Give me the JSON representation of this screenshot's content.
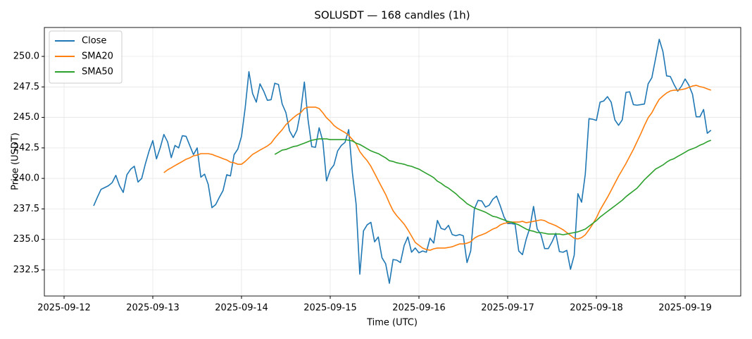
{
  "chart_data": {
    "type": "line",
    "title": "SOLUSDT — 168 candles (1h)",
    "x_label": "Time (UTC)",
    "y_label": "Price (USDT)",
    "x": [
      "2025-09-12T08:00",
      "2025-09-12T09:00",
      "2025-09-12T10:00",
      "2025-09-12T11:00",
      "2025-09-12T12:00",
      "2025-09-12T13:00",
      "2025-09-12T14:00",
      "2025-09-12T15:00",
      "2025-09-12T16:00",
      "2025-09-12T17:00",
      "2025-09-12T18:00",
      "2025-09-12T19:00",
      "2025-09-12T20:00",
      "2025-09-12T21:00",
      "2025-09-12T22:00",
      "2025-09-12T23:00",
      "2025-09-13T00:00",
      "2025-09-13T01:00",
      "2025-09-13T02:00",
      "2025-09-13T03:00",
      "2025-09-13T04:00",
      "2025-09-13T05:00",
      "2025-09-13T06:00",
      "2025-09-13T07:00",
      "2025-09-13T08:00",
      "2025-09-13T09:00",
      "2025-09-13T10:00",
      "2025-09-13T11:00",
      "2025-09-13T12:00",
      "2025-09-13T13:00",
      "2025-09-13T14:00",
      "2025-09-13T15:00",
      "2025-09-13T16:00",
      "2025-09-13T17:00",
      "2025-09-13T18:00",
      "2025-09-13T19:00",
      "2025-09-13T20:00",
      "2025-09-13T21:00",
      "2025-09-13T22:00",
      "2025-09-13T23:00",
      "2025-09-14T00:00",
      "2025-09-14T01:00",
      "2025-09-14T02:00",
      "2025-09-14T03:00",
      "2025-09-14T04:00",
      "2025-09-14T05:00",
      "2025-09-14T06:00",
      "2025-09-14T07:00",
      "2025-09-14T08:00",
      "2025-09-14T09:00",
      "2025-09-14T10:00",
      "2025-09-14T11:00",
      "2025-09-14T12:00",
      "2025-09-14T13:00",
      "2025-09-14T14:00",
      "2025-09-14T15:00",
      "2025-09-14T16:00",
      "2025-09-14T17:00",
      "2025-09-14T18:00",
      "2025-09-14T19:00",
      "2025-09-14T20:00",
      "2025-09-14T21:00",
      "2025-09-14T22:00",
      "2025-09-14T23:00",
      "2025-09-15T00:00",
      "2025-09-15T01:00",
      "2025-09-15T02:00",
      "2025-09-15T03:00",
      "2025-09-15T04:00",
      "2025-09-15T05:00",
      "2025-09-15T06:00",
      "2025-09-15T07:00",
      "2025-09-15T08:00",
      "2025-09-15T09:00",
      "2025-09-15T10:00",
      "2025-09-15T11:00",
      "2025-09-15T12:00",
      "2025-09-15T13:00",
      "2025-09-15T14:00",
      "2025-09-15T15:00",
      "2025-09-15T16:00",
      "2025-09-15T17:00",
      "2025-09-15T18:00",
      "2025-09-15T19:00",
      "2025-09-15T20:00",
      "2025-09-15T21:00",
      "2025-09-15T22:00",
      "2025-09-15T23:00",
      "2025-09-16T00:00",
      "2025-09-16T01:00",
      "2025-09-16T02:00",
      "2025-09-16T03:00",
      "2025-09-16T04:00",
      "2025-09-16T05:00",
      "2025-09-16T06:00",
      "2025-09-16T07:00",
      "2025-09-16T08:00",
      "2025-09-16T09:00",
      "2025-09-16T10:00",
      "2025-09-16T11:00",
      "2025-09-16T12:00",
      "2025-09-16T13:00",
      "2025-09-16T14:00",
      "2025-09-16T15:00",
      "2025-09-16T16:00",
      "2025-09-16T17:00",
      "2025-09-16T18:00",
      "2025-09-16T19:00",
      "2025-09-16T20:00",
      "2025-09-16T21:00",
      "2025-09-16T22:00",
      "2025-09-16T23:00",
      "2025-09-17T00:00",
      "2025-09-17T01:00",
      "2025-09-17T02:00",
      "2025-09-17T03:00",
      "2025-09-17T04:00",
      "2025-09-17T05:00",
      "2025-09-17T06:00",
      "2025-09-17T07:00",
      "2025-09-17T08:00",
      "2025-09-17T09:00",
      "2025-09-17T10:00",
      "2025-09-17T11:00",
      "2025-09-17T12:00",
      "2025-09-17T13:00",
      "2025-09-17T14:00",
      "2025-09-17T15:00",
      "2025-09-17T16:00",
      "2025-09-17T17:00",
      "2025-09-17T18:00",
      "2025-09-17T19:00",
      "2025-09-17T20:00",
      "2025-09-17T21:00",
      "2025-09-17T22:00",
      "2025-09-17T23:00",
      "2025-09-18T00:00",
      "2025-09-18T01:00",
      "2025-09-18T02:00",
      "2025-09-18T03:00",
      "2025-09-18T04:00",
      "2025-09-18T05:00",
      "2025-09-18T06:00",
      "2025-09-18T07:00",
      "2025-09-18T08:00",
      "2025-09-18T09:00",
      "2025-09-18T10:00",
      "2025-09-18T11:00",
      "2025-09-18T12:00",
      "2025-09-18T13:00",
      "2025-09-18T14:00",
      "2025-09-18T15:00",
      "2025-09-18T16:00",
      "2025-09-18T17:00",
      "2025-09-18T18:00",
      "2025-09-18T19:00",
      "2025-09-18T20:00",
      "2025-09-18T21:00",
      "2025-09-18T22:00",
      "2025-09-18T23:00",
      "2025-09-19T00:00",
      "2025-09-19T01:00",
      "2025-09-19T02:00",
      "2025-09-19T03:00",
      "2025-09-19T04:00",
      "2025-09-19T05:00",
      "2025-09-19T06:00",
      "2025-09-19T07:00"
    ],
    "series": [
      {
        "name": "Close",
        "color": "#1f77b4",
        "values": [
          237.75,
          238.45,
          239.1,
          239.25,
          239.4,
          239.65,
          240.25,
          239.4,
          238.85,
          240.3,
          240.75,
          241.0,
          239.7,
          240.0,
          241.2,
          242.25,
          243.1,
          241.6,
          242.5,
          243.6,
          243.0,
          241.7,
          242.7,
          242.5,
          243.5,
          243.45,
          242.7,
          241.95,
          242.5,
          240.1,
          240.35,
          239.5,
          237.6,
          237.85,
          238.45,
          239.0,
          240.3,
          240.2,
          241.95,
          242.4,
          243.45,
          245.8,
          248.75,
          246.95,
          246.25,
          247.75,
          247.15,
          246.4,
          246.45,
          247.8,
          247.7,
          246.1,
          245.4,
          243.9,
          243.35,
          243.95,
          245.5,
          247.9,
          244.8,
          242.6,
          242.55,
          244.15,
          243.05,
          239.8,
          240.7,
          241.1,
          242.25,
          242.7,
          242.95,
          244.0,
          240.45,
          237.9,
          232.15,
          235.7,
          236.2,
          236.4,
          234.8,
          235.2,
          233.5,
          233.0,
          231.4,
          233.35,
          233.3,
          233.1,
          234.5,
          235.2,
          233.95,
          234.3,
          233.9,
          234.05,
          233.95,
          235.1,
          234.7,
          236.55,
          235.9,
          235.8,
          236.15,
          235.4,
          235.3,
          235.4,
          235.3,
          233.1,
          234.05,
          237.5,
          238.2,
          238.15,
          237.65,
          237.8,
          238.3,
          238.55,
          237.75,
          236.85,
          236.3,
          236.3,
          236.25,
          234.05,
          233.75,
          235.0,
          235.95,
          237.7,
          235.85,
          235.4,
          234.25,
          234.25,
          234.8,
          235.5,
          234.0,
          233.95,
          234.1,
          232.55,
          233.7,
          238.75,
          238.05,
          240.35,
          244.9,
          244.85,
          244.75,
          246.25,
          246.35,
          246.7,
          246.25,
          244.8,
          244.35,
          244.8,
          247.05,
          247.1,
          246.05,
          246.0,
          246.05,
          246.1,
          247.75,
          248.25,
          249.8,
          251.4,
          250.4,
          248.4,
          248.35,
          247.7,
          247.15,
          247.55,
          248.15,
          247.65,
          246.9,
          245.05,
          245.05,
          245.65,
          243.7,
          243.95
        ]
      },
      {
        "name": "SMA20",
        "color": "#ff7f0e",
        "values": [
          null,
          null,
          null,
          null,
          null,
          null,
          null,
          null,
          null,
          null,
          null,
          null,
          null,
          null,
          null,
          null,
          null,
          null,
          null,
          240.47,
          240.7,
          240.87,
          241.05,
          241.22,
          241.39,
          241.57,
          241.68,
          241.85,
          241.91,
          242.03,
          242.03,
          242.03,
          241.97,
          241.85,
          241.74,
          241.62,
          241.51,
          241.33,
          241.28,
          241.16,
          241.16,
          241.39,
          241.68,
          241.97,
          242.14,
          242.32,
          242.49,
          242.66,
          242.89,
          243.3,
          243.65,
          243.99,
          244.4,
          244.69,
          244.97,
          245.21,
          245.38,
          245.73,
          245.84,
          245.84,
          245.84,
          245.73,
          245.38,
          244.97,
          244.69,
          244.34,
          244.11,
          243.93,
          243.76,
          243.53,
          243.18,
          242.84,
          242.2,
          241.8,
          241.45,
          240.99,
          240.41,
          239.83,
          239.25,
          238.68,
          237.98,
          237.35,
          236.94,
          236.6,
          236.25,
          235.79,
          235.27,
          234.75,
          234.52,
          234.29,
          234.17,
          234.11,
          234.23,
          234.29,
          234.29,
          234.29,
          234.34,
          234.4,
          234.52,
          234.63,
          234.63,
          234.69,
          234.81,
          235.1,
          235.27,
          235.38,
          235.5,
          235.67,
          235.85,
          235.96,
          236.19,
          236.31,
          236.37,
          236.42,
          236.42,
          236.42,
          236.48,
          236.37,
          236.42,
          236.48,
          236.54,
          236.6,
          236.54,
          236.37,
          236.25,
          236.13,
          235.96,
          235.79,
          235.56,
          235.33,
          235.1,
          235.04,
          235.15,
          235.38,
          235.79,
          236.25,
          236.77,
          237.41,
          237.93,
          238.45,
          239.02,
          239.6,
          240.18,
          240.7,
          241.22,
          241.8,
          242.37,
          243.01,
          243.65,
          244.34,
          244.97,
          245.38,
          245.96,
          246.48,
          246.76,
          247.0,
          247.17,
          247.23,
          247.23,
          247.28,
          247.34,
          247.46,
          247.57,
          247.63,
          247.52,
          247.46,
          247.34,
          247.23
        ]
      },
      {
        "name": "SMA50",
        "color": "#2ca02c",
        "values": [
          null,
          null,
          null,
          null,
          null,
          null,
          null,
          null,
          null,
          null,
          null,
          null,
          null,
          null,
          null,
          null,
          null,
          null,
          null,
          null,
          null,
          null,
          null,
          null,
          null,
          null,
          null,
          null,
          null,
          null,
          null,
          null,
          null,
          null,
          null,
          null,
          null,
          null,
          null,
          null,
          null,
          null,
          null,
          null,
          null,
          null,
          null,
          null,
          null,
          241.97,
          242.14,
          242.32,
          242.37,
          242.49,
          242.61,
          242.66,
          242.78,
          242.89,
          243.01,
          243.13,
          243.18,
          243.24,
          243.24,
          243.24,
          243.18,
          243.18,
          243.18,
          243.18,
          243.18,
          243.13,
          243.07,
          242.89,
          242.78,
          242.61,
          242.43,
          242.26,
          242.14,
          242.03,
          241.85,
          241.68,
          241.45,
          241.39,
          241.28,
          241.22,
          241.16,
          241.05,
          240.99,
          240.87,
          240.76,
          240.58,
          240.41,
          240.24,
          240.06,
          239.77,
          239.6,
          239.37,
          239.2,
          238.97,
          238.74,
          238.45,
          238.21,
          237.93,
          237.75,
          237.58,
          237.46,
          237.35,
          237.23,
          237.06,
          236.89,
          236.83,
          236.71,
          236.6,
          236.48,
          236.42,
          236.31,
          236.19,
          236.02,
          235.85,
          235.73,
          235.67,
          235.56,
          235.56,
          235.5,
          235.44,
          235.44,
          235.44,
          235.44,
          235.38,
          235.44,
          235.5,
          235.56,
          235.62,
          235.73,
          235.85,
          236.08,
          236.31,
          236.54,
          236.83,
          237.06,
          237.29,
          237.52,
          237.75,
          237.98,
          238.21,
          238.5,
          238.74,
          238.97,
          239.2,
          239.54,
          239.89,
          240.18,
          240.47,
          240.76,
          240.93,
          241.1,
          241.33,
          241.51,
          241.62,
          241.8,
          241.97,
          242.14,
          242.32,
          242.43,
          242.55,
          242.72,
          242.84,
          243.01,
          243.13
        ]
      }
    ],
    "xlim": [
      "2025-09-11T18:40",
      "2025-09-19T15:03"
    ],
    "xticks": [
      "2025-09-12",
      "2025-09-13",
      "2025-09-14",
      "2025-09-15",
      "2025-09-16",
      "2025-09-17",
      "2025-09-18",
      "2025-09-19"
    ],
    "ylim": [
      230.36,
      252.37
    ],
    "yticks": [
      232.5,
      {
        "value": 235,
        "label": "235.0"
      },
      237.5,
      {
        "value": 240,
        "label": "240.0"
      },
      242.5,
      {
        "value": 245,
        "label": "245.0"
      },
      247.5,
      {
        "value": 250,
        "label": "250.0"
      }
    ],
    "grid": true,
    "legend": "upper left"
  }
}
